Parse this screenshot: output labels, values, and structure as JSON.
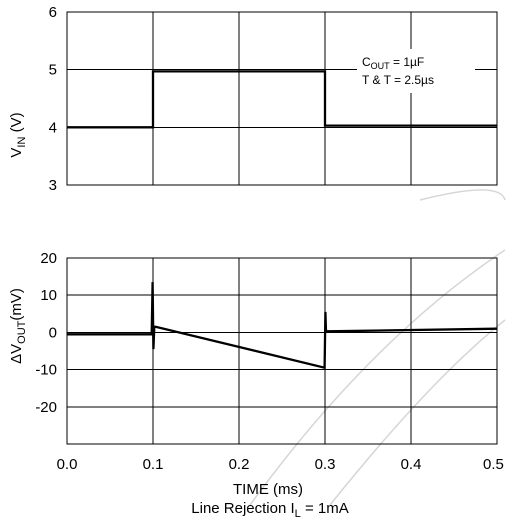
{
  "chart_data": [
    {
      "type": "line",
      "ylabel_main": "V",
      "ylabel_sub": "IN",
      "ylabel_unit": " (V)",
      "ylim": [
        3,
        6
      ],
      "yticks": [
        "6",
        "5",
        "4",
        "3"
      ],
      "xlim": [
        0,
        0.5
      ],
      "grid": true,
      "annotation": {
        "line1_main": "C",
        "line1_sub": "OUT",
        "line1_rest": " = 1µF",
        "line2": "T & T = 2.5µs"
      },
      "series": [
        {
          "x": [
            0,
            0.1,
            0.1,
            0.3,
            0.3,
            0.5
          ],
          "y": [
            4.0,
            4.0,
            4.97,
            4.97,
            4.03,
            4.03
          ]
        }
      ]
    },
    {
      "type": "line",
      "ylabel_prefix": "ΔV",
      "ylabel_sub": "OUT",
      "ylabel_unit": "(mV)",
      "ylim": [
        -30,
        20
      ],
      "yticks": [
        "20",
        "10",
        "0",
        "-10",
        "-20"
      ],
      "xlim": [
        0,
        0.5
      ],
      "grid": true,
      "series": [
        {
          "x": [
            0,
            0.0985,
            0.0995,
            0.1005,
            0.1015,
            0.103,
            0.2995,
            0.3005,
            0.3012,
            0.303,
            0.5
          ],
          "y": [
            -0.5,
            -0.5,
            13.5,
            -4.5,
            1.5,
            1.5,
            -9.5,
            5.5,
            0.3,
            0.3,
            1.0
          ]
        }
      ]
    }
  ],
  "x_axis": {
    "ticks": [
      "0.0",
      "0.1",
      "0.2",
      "0.3",
      "0.4",
      "0.5"
    ],
    "label": "TIME (ms)"
  },
  "caption": {
    "main": "Line Rejection I",
    "sub": "L",
    "rest": " = 1mA"
  }
}
